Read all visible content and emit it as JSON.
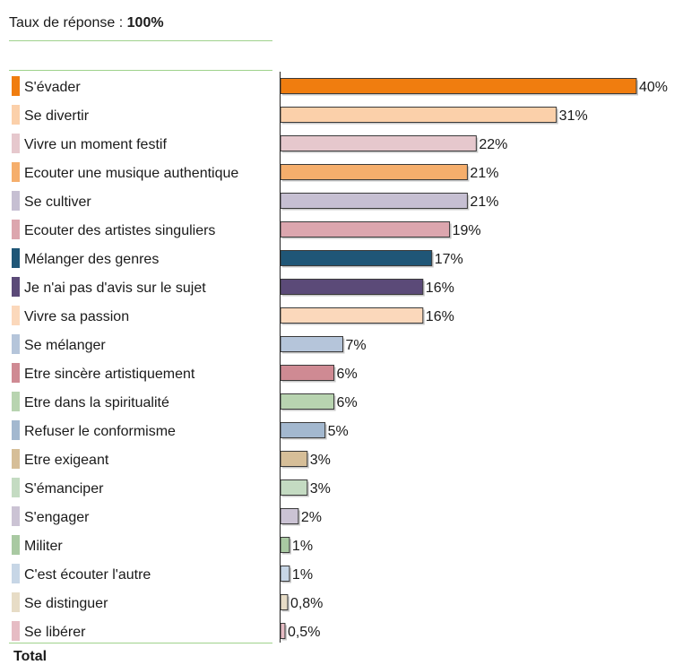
{
  "header": {
    "rate_label": "Taux de réponse : ",
    "rate_value": "100%"
  },
  "footer": {
    "total_label": "Total"
  },
  "chart_data": {
    "type": "bar",
    "orientation": "horizontal",
    "categories": [
      "S'évader",
      "Se divertir",
      "Vivre un moment festif",
      "Ecouter une musique authentique",
      "Se cultiver",
      "Ecouter des artistes singuliers",
      "Mélanger des genres",
      "Je n'ai pas d'avis sur le sujet",
      "Vivre sa passion",
      "Se mélanger",
      "Etre sincère artistiquement",
      "Etre dans la spiritualité",
      "Refuser le conformisme",
      "Etre exigeant",
      "S'émanciper",
      "S'engager",
      "Militer",
      "C'est écouter l'autre",
      "Se distinguer",
      "Se libérer"
    ],
    "values": [
      40,
      31,
      22,
      21,
      21,
      19,
      17,
      16,
      16,
      7,
      6,
      6,
      5,
      3,
      3,
      2,
      1,
      1,
      0.8,
      0.5
    ],
    "value_labels": [
      "40%",
      "31%",
      "22%",
      "21%",
      "21%",
      "19%",
      "17%",
      "16%",
      "16%",
      "7%",
      "6%",
      "6%",
      "5%",
      "3%",
      "3%",
      "2%",
      "1%",
      "1%",
      "0,8%",
      "0,5%"
    ],
    "colors": [
      "#f07d0f",
      "#fbd0aa",
      "#e6c8cd",
      "#f5ae6c",
      "#c6bfd2",
      "#dca6ae",
      "#1f5677",
      "#5b4a78",
      "#fbd8bb",
      "#b5c5da",
      "#cf8a93",
      "#b8d4b0",
      "#a3b8cf",
      "#d6be98",
      "#c4dbc2",
      "#cbc3d4",
      "#a9c9a2",
      "#c7d6e6",
      "#e7dcc6",
      "#e6bcc4"
    ],
    "xlim": [
      0,
      40
    ],
    "unit": "%"
  }
}
